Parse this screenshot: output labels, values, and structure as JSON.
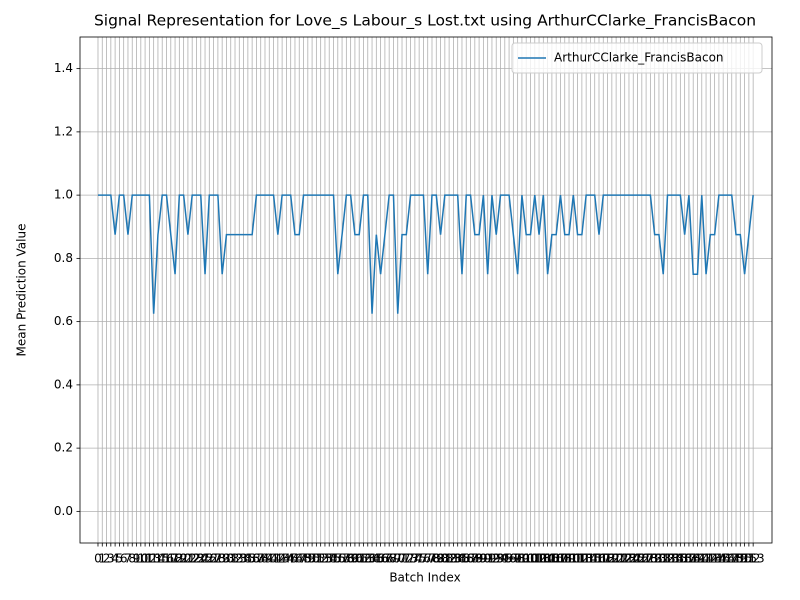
{
  "chart_data": {
    "type": "line",
    "title": "Signal Representation for Love_s Labour_s Lost.txt using ArthurCClarke_FrancisBacon",
    "xlabel": "Batch Index",
    "ylabel": "Mean Prediction Value",
    "x": [
      0,
      1,
      2,
      3,
      4,
      5,
      6,
      7,
      8,
      9,
      10,
      11,
      12,
      13,
      14,
      15,
      16,
      17,
      18,
      19,
      20,
      21,
      22,
      23,
      24,
      25,
      26,
      27,
      28,
      29,
      30,
      31,
      32,
      33,
      34,
      35,
      36,
      37,
      38,
      39,
      40,
      41,
      42,
      43,
      44,
      45,
      46,
      47,
      48,
      49,
      50,
      51,
      52,
      53,
      54,
      55,
      56,
      57,
      58,
      59,
      60,
      61,
      62,
      63,
      64,
      65,
      66,
      67,
      68,
      69,
      70,
      71,
      72,
      73,
      74,
      75,
      76,
      77,
      78,
      79,
      80,
      81,
      82,
      83,
      84,
      85,
      86,
      87,
      88,
      89,
      90,
      91,
      92,
      93,
      94,
      95,
      96,
      97,
      98,
      99,
      100,
      101,
      102,
      103,
      104,
      105,
      106,
      107,
      108,
      109,
      110,
      111,
      112,
      113,
      114,
      115,
      116,
      117,
      118,
      119,
      120,
      121,
      122,
      123,
      124,
      125,
      126,
      127,
      128,
      129,
      130,
      131,
      132,
      133,
      134,
      135,
      136,
      137,
      138,
      139,
      140,
      141,
      142,
      143,
      144,
      145,
      146,
      147,
      148,
      149,
      150,
      151,
      152,
      153
    ],
    "series": [
      {
        "name": "ArthurCClarke_FrancisBacon",
        "color": "#1f77b4",
        "values": [
          1,
          1,
          1,
          1,
          0.875,
          1,
          1,
          0.875,
          1,
          1,
          1,
          1,
          1,
          0.625,
          0.875,
          1,
          1,
          0.875,
          0.75,
          1,
          1,
          0.875,
          1,
          1,
          1,
          0.75,
          1,
          1,
          1,
          0.75,
          0.875,
          0.875,
          0.875,
          0.875,
          0.875,
          0.875,
          0.875,
          1,
          1,
          1,
          1,
          1,
          0.875,
          1,
          1,
          1,
          0.875,
          0.875,
          1,
          1,
          1,
          1,
          1,
          1,
          1,
          1,
          0.75,
          0.875,
          1,
          1,
          0.875,
          0.875,
          1,
          1,
          0.625,
          0.875,
          0.75,
          0.875,
          1,
          1,
          0.625,
          0.875,
          0.875,
          1,
          1,
          1,
          1,
          0.75,
          1,
          1,
          0.875,
          1,
          1,
          1,
          1,
          0.75,
          1,
          1,
          0.875,
          0.875,
          1,
          0.75,
          1,
          0.875,
          1,
          1,
          1,
          0.875,
          0.75,
          1,
          0.875,
          0.875,
          1,
          0.875,
          1,
          0.75,
          0.875,
          0.875,
          1,
          0.875,
          0.875,
          1,
          0.875,
          0.875,
          1,
          1,
          1,
          0.875,
          1,
          1,
          1,
          1,
          1,
          1,
          1,
          1,
          1,
          1,
          1,
          1,
          0.875,
          0.875,
          0.75,
          1,
          1,
          1,
          1,
          0.875,
          1,
          0.75,
          0.75,
          1,
          0.75,
          0.875,
          0.875,
          1,
          1,
          1,
          1,
          0.875,
          0.875,
          0.75,
          0.875,
          1
        ]
      }
    ],
    "xlim": [
      -4.2,
      157.4
    ],
    "xticks": [
      0,
      1,
      2,
      3,
      4,
      5,
      6,
      7,
      8,
      9,
      10,
      11,
      12,
      13,
      14,
      15,
      16,
      17,
      18,
      19,
      20,
      21,
      22,
      23,
      24,
      25,
      26,
      27,
      28,
      29,
      30,
      31,
      32,
      33,
      34,
      35,
      36,
      37,
      38,
      39,
      40,
      41,
      42,
      43,
      44,
      45,
      46,
      47,
      48,
      49,
      50,
      51,
      52,
      53,
      54,
      55,
      56,
      57,
      58,
      59,
      60,
      61,
      62,
      63,
      64,
      65,
      66,
      67,
      68,
      69,
      70,
      71,
      72,
      73,
      74,
      75,
      76,
      77,
      78,
      79,
      80,
      81,
      82,
      83,
      84,
      85,
      86,
      87,
      88,
      89,
      90,
      91,
      92,
      93,
      94,
      95,
      96,
      97,
      98,
      99,
      100,
      101,
      102,
      103,
      104,
      105,
      106,
      107,
      108,
      109,
      110,
      111,
      112,
      113,
      114,
      115,
      116,
      117,
      118,
      119,
      120,
      121,
      122,
      123,
      124,
      125,
      126,
      127,
      128,
      129,
      130,
      131,
      132,
      133,
      134,
      135,
      136,
      137,
      138,
      139,
      140,
      141,
      142,
      143,
      144,
      145,
      146,
      147,
      148,
      149,
      150,
      151,
      152,
      153
    ],
    "ylim": [
      -0.1,
      1.5
    ],
    "yticks": [
      {
        "value": 0,
        "label": "0.0"
      },
      {
        "value": 0.2,
        "label": "0.2"
      },
      {
        "value": 0.4,
        "label": "0.4"
      },
      {
        "value": 0.6,
        "label": "0.6"
      },
      {
        "value": 0.8,
        "label": "0.8"
      },
      {
        "value": 1,
        "label": "1.0"
      },
      {
        "value": 1.2,
        "label": "1.2"
      },
      {
        "value": 1.4,
        "label": "1.4"
      }
    ],
    "grid": true,
    "legend": "upper right"
  }
}
